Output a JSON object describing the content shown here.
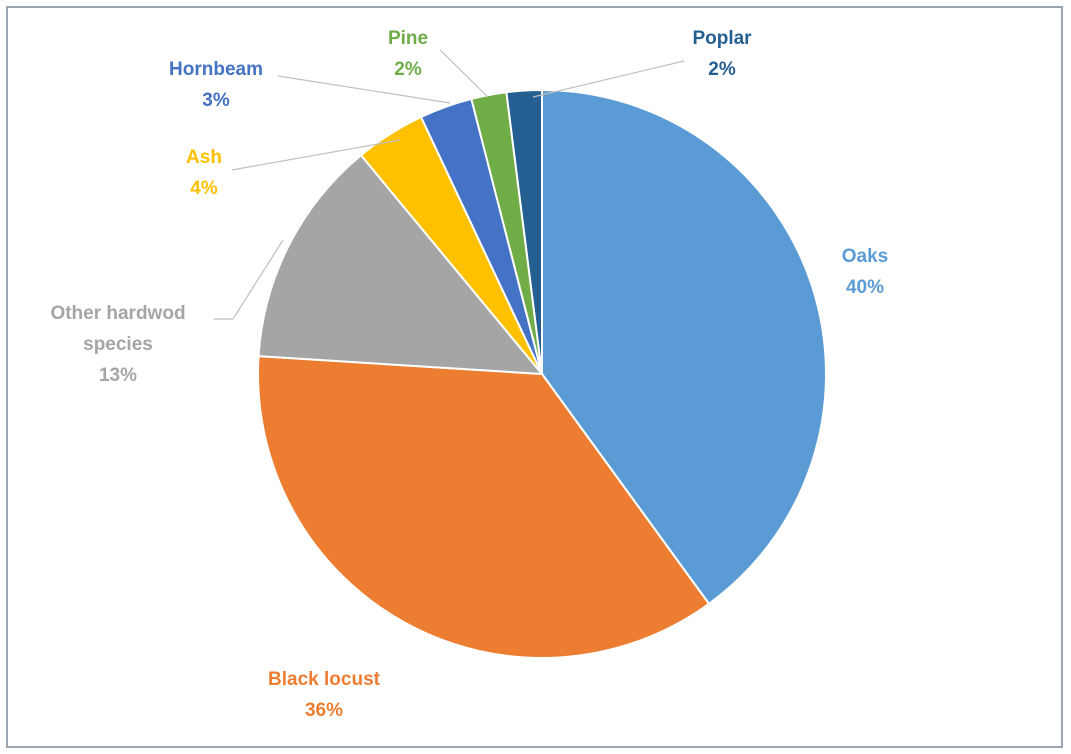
{
  "chart_data": {
    "type": "pie",
    "title": "",
    "start_angle_deg": 0,
    "direction": "clockwise",
    "slices": [
      {
        "label": "Oaks",
        "value_label": "40%",
        "value": 40,
        "color": "#5b9bd5"
      },
      {
        "label": "Black locust",
        "value_label": "36%",
        "value": 36,
        "color": "#ed7d31"
      },
      {
        "label": "Other hardwod species",
        "label_lines": [
          "Other hardwod",
          "species"
        ],
        "value_label": "13%",
        "value": 13,
        "color": "#a5a5a5"
      },
      {
        "label": "Ash",
        "value_label": "4%",
        "value": 4,
        "color": "#ffc000"
      },
      {
        "label": "Hornbeam",
        "value_label": "3%",
        "value": 3,
        "color": "#4472c4"
      },
      {
        "label": "Pine",
        "value_label": "2%",
        "value": 2,
        "color": "#70ad47"
      },
      {
        "label": "Poplar",
        "value_label": "2%",
        "value": 2,
        "color": "#255e91"
      }
    ],
    "label_colors": {
      "Oaks": "#5b9bd5",
      "Black locust": "#ed7d31",
      "Other hardwod species": "#a5a5a5",
      "Ash": "#ffc000",
      "Hornbeam": "#4472c4",
      "Pine": "#70ad47",
      "Poplar": "#255e91"
    },
    "leader_lines": [
      "Other hardwod species",
      "Ash",
      "Hornbeam",
      "Pine",
      "Poplar"
    ],
    "legend": "none"
  }
}
